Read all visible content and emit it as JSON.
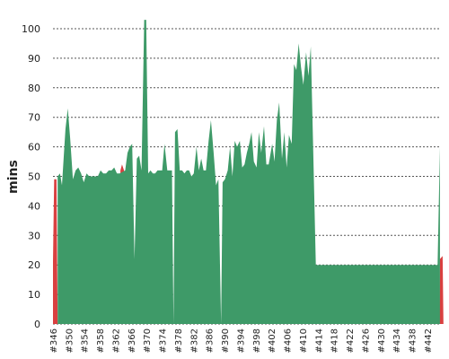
{
  "chart_data": {
    "type": "area",
    "ylabel": "mins",
    "ylim": [
      0,
      105
    ],
    "yticks": [
      0,
      10,
      20,
      30,
      40,
      50,
      60,
      70,
      80,
      90,
      100
    ],
    "grid": "horizontal dashed",
    "x_start": 346,
    "x_end": 445,
    "x_tick_labels": [
      "#346",
      "#350",
      "#354",
      "#358",
      "#362",
      "#366",
      "#370",
      "#374",
      "#378",
      "#382",
      "#386",
      "#390",
      "#394",
      "#398",
      "#402",
      "#406",
      "#410",
      "#414",
      "#418",
      "#422",
      "#426",
      "#430",
      "#434",
      "#438",
      "#442"
    ],
    "series": [
      {
        "status": "failed",
        "color": "#d94040",
        "points": [
          [
            346,
            21
          ],
          [
            346.3,
            49
          ],
          [
            346.9,
            49
          ],
          [
            347.2,
            0
          ],
          [
            363.2,
            0
          ],
          [
            363.3,
            52
          ],
          [
            363.7,
            54
          ],
          [
            364.2,
            52
          ],
          [
            364.4,
            0
          ],
          [
            401.6,
            0
          ],
          [
            401.8,
            20
          ],
          [
            402,
            0
          ],
          [
            445.1,
            0
          ],
          [
            445.2,
            22
          ],
          [
            445.9,
            23
          ],
          [
            446.1,
            0
          ]
        ]
      },
      {
        "status": "success",
        "color": "#3e9a68",
        "points": [
          [
            347.2,
            50
          ],
          [
            347.8,
            51
          ],
          [
            348.3,
            47
          ],
          [
            349.2,
            66
          ],
          [
            349.8,
            73
          ],
          [
            350.4,
            63
          ],
          [
            351.1,
            49
          ],
          [
            351.8,
            52
          ],
          [
            352.5,
            53
          ],
          [
            353.2,
            51
          ],
          [
            353.9,
            48
          ],
          [
            354.6,
            51
          ],
          [
            355.3,
            50
          ],
          [
            356,
            50
          ],
          [
            356.8,
            50
          ],
          [
            357.5,
            50
          ],
          [
            358.2,
            52
          ],
          [
            358.9,
            51
          ],
          [
            359.6,
            51
          ],
          [
            360.3,
            52
          ],
          [
            361,
            52
          ],
          [
            361.7,
            53
          ],
          [
            362.4,
            51
          ],
          [
            363.1,
            51
          ],
          [
            364.5,
            52
          ],
          [
            365.1,
            58
          ],
          [
            365.7,
            60
          ],
          [
            366.3,
            61
          ],
          [
            366.9,
            22
          ],
          [
            367.5,
            56
          ],
          [
            368.1,
            57
          ],
          [
            368.7,
            52
          ],
          [
            369.4,
            103
          ],
          [
            369.9,
            103
          ],
          [
            370.4,
            51
          ],
          [
            371,
            52
          ],
          [
            371.6,
            51
          ],
          [
            372.2,
            51
          ],
          [
            372.8,
            52
          ],
          [
            373.4,
            52
          ],
          [
            374,
            52
          ],
          [
            374.6,
            61
          ],
          [
            375.3,
            52
          ],
          [
            375.9,
            52
          ],
          [
            376.5,
            52
          ],
          [
            376.9,
            0
          ],
          [
            377.3,
            65
          ],
          [
            377.9,
            66
          ],
          [
            378.5,
            52
          ],
          [
            379.1,
            52
          ],
          [
            379.7,
            51
          ],
          [
            380.3,
            52
          ],
          [
            380.9,
            52
          ],
          [
            381.5,
            50
          ],
          [
            382.1,
            51
          ],
          [
            382.8,
            60
          ],
          [
            383.4,
            52
          ],
          [
            384,
            56
          ],
          [
            384.6,
            52
          ],
          [
            385.2,
            52
          ],
          [
            385.9,
            62
          ],
          [
            386.5,
            69
          ],
          [
            387.2,
            58
          ],
          [
            387.8,
            47
          ],
          [
            388.4,
            49
          ],
          [
            389.1,
            0
          ],
          [
            389.5,
            48
          ],
          [
            390.1,
            49
          ],
          [
            390.8,
            52
          ],
          [
            391.4,
            60
          ],
          [
            392,
            50
          ],
          [
            392.6,
            62
          ],
          [
            393.2,
            60
          ],
          [
            393.9,
            62
          ],
          [
            394.5,
            53
          ],
          [
            395.1,
            54
          ],
          [
            395.7,
            58
          ],
          [
            396.3,
            61
          ],
          [
            396.9,
            65
          ],
          [
            397.5,
            55
          ],
          [
            398.2,
            53
          ],
          [
            398.8,
            65
          ],
          [
            399.4,
            58
          ],
          [
            400.1,
            67
          ],
          [
            400.7,
            54
          ],
          [
            401.3,
            54
          ],
          [
            402.2,
            61
          ],
          [
            402.8,
            55
          ],
          [
            403.4,
            69
          ],
          [
            404,
            75
          ],
          [
            404.7,
            56
          ],
          [
            405.3,
            65
          ],
          [
            405.9,
            53
          ],
          [
            406.5,
            64
          ],
          [
            407.2,
            61
          ],
          [
            407.8,
            88
          ],
          [
            408.4,
            86
          ],
          [
            409,
            95
          ],
          [
            409.6,
            87
          ],
          [
            410.2,
            81
          ],
          [
            410.9,
            92
          ],
          [
            411.5,
            84
          ],
          [
            412.1,
            94
          ],
          [
            412.7,
            60
          ],
          [
            413.4,
            20
          ],
          [
            444.6,
            20
          ],
          [
            445.2,
            60
          ]
        ]
      }
    ]
  }
}
